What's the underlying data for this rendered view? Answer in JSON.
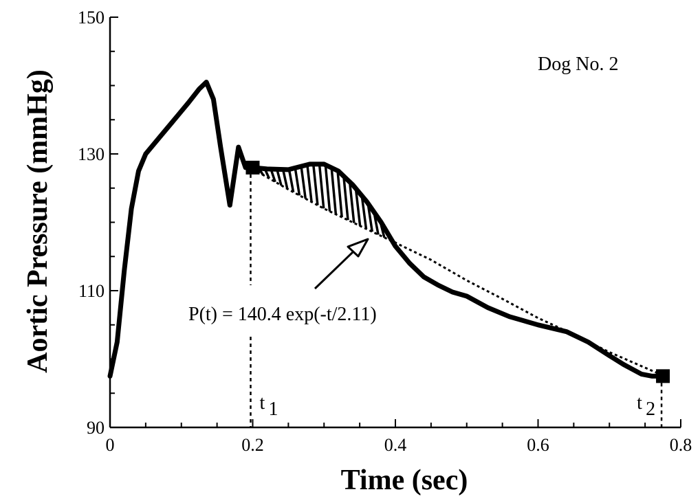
{
  "chart_data": {
    "type": "line",
    "title": "",
    "xlabel": "Time  (sec)",
    "ylabel": "Aortic Pressure (mmHg)",
    "xlim": [
      0,
      0.8
    ],
    "ylim": [
      90,
      150
    ],
    "xticks": [
      0,
      0.2,
      0.4,
      0.6,
      0.8
    ],
    "xtick_labels": [
      "0",
      "0.2",
      "0.4",
      "0.6",
      "0.8"
    ],
    "yticks": [
      90,
      110,
      130,
      150
    ],
    "ytick_labels": [
      "90",
      "110",
      "130",
      "150"
    ],
    "grid": false,
    "series": [
      {
        "kind": "measured",
        "x": [
          0.0,
          0.01,
          0.02,
          0.03,
          0.04,
          0.05,
          0.07,
          0.09,
          0.11,
          0.125,
          0.135,
          0.145,
          0.155,
          0.168,
          0.18,
          0.19,
          0.2,
          0.22,
          0.25,
          0.28,
          0.3,
          0.32,
          0.34,
          0.36,
          0.38,
          0.4,
          0.42,
          0.44,
          0.46,
          0.48,
          0.5,
          0.53,
          0.56,
          0.6,
          0.64,
          0.67,
          0.7,
          0.72,
          0.745,
          0.76,
          0.775
        ],
        "y": [
          97.5,
          102.5,
          113,
          122,
          127.5,
          130,
          132.5,
          135,
          137.5,
          139.5,
          140.5,
          138,
          131,
          122.5,
          131,
          128,
          128,
          127.8,
          127.7,
          128.5,
          128.5,
          127.5,
          125.5,
          123,
          120,
          116.5,
          114,
          112,
          110.8,
          109.8,
          109.2,
          107.5,
          106.2,
          105,
          104,
          102.5,
          100.5,
          99.2,
          97.8,
          97.5,
          97.5
        ]
      },
      {
        "kind": "fit",
        "x": [
          0.2,
          0.25,
          0.3,
          0.35,
          0.4,
          0.45,
          0.5,
          0.55,
          0.6,
          0.65,
          0.7,
          0.775
        ],
        "y": [
          127.8,
          124.8,
          122,
          119.5,
          117,
          114.5,
          111.5,
          108.8,
          106,
          103.6,
          101,
          97.6
        ]
      }
    ],
    "shaded_region": {
      "x_start": 0.2,
      "x_end": 0.475
    },
    "markers": [
      {
        "x": 0.2,
        "y": 128,
        "label": "t",
        "sub": "1"
      },
      {
        "x": 0.775,
        "y": 97.5,
        "label": "t",
        "sub": "2"
      }
    ],
    "annotations": {
      "dog_label": "Dog No. 2",
      "equation": "P(t) = 140.4 exp(-t/2.11)"
    }
  }
}
